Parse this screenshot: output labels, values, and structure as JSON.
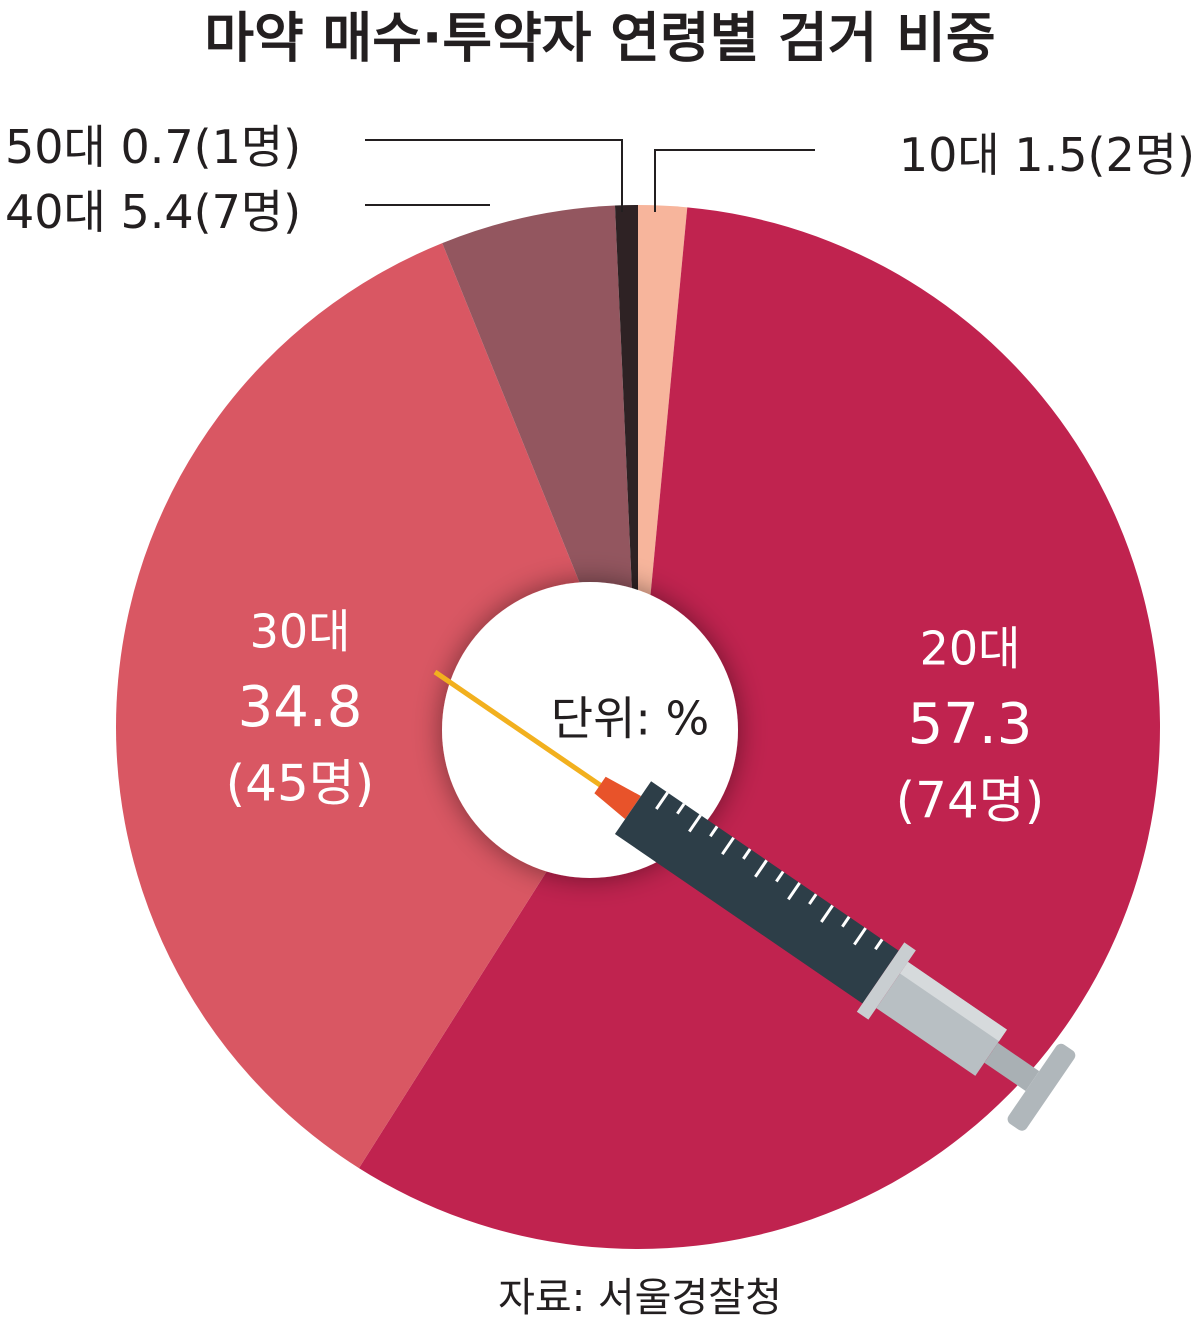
{
  "chart_data": {
    "type": "pie",
    "title": "마약 매수·투약자 연령별 검거 비중",
    "center_label": "단위: %",
    "source": "자료: 서울경찰청",
    "categories": [
      "10대",
      "20대",
      "30대",
      "40대",
      "50대"
    ],
    "values": [
      1.5,
      57.3,
      34.8,
      5.4,
      0.7
    ],
    "count_labels": [
      "(2명)",
      "(74명)",
      "(45명)",
      "(7명)",
      "(1명)"
    ],
    "colors": [
      "#f7b59c",
      "#c0234f",
      "#d95763",
      "#93565f",
      "#2e2224"
    ]
  }
}
